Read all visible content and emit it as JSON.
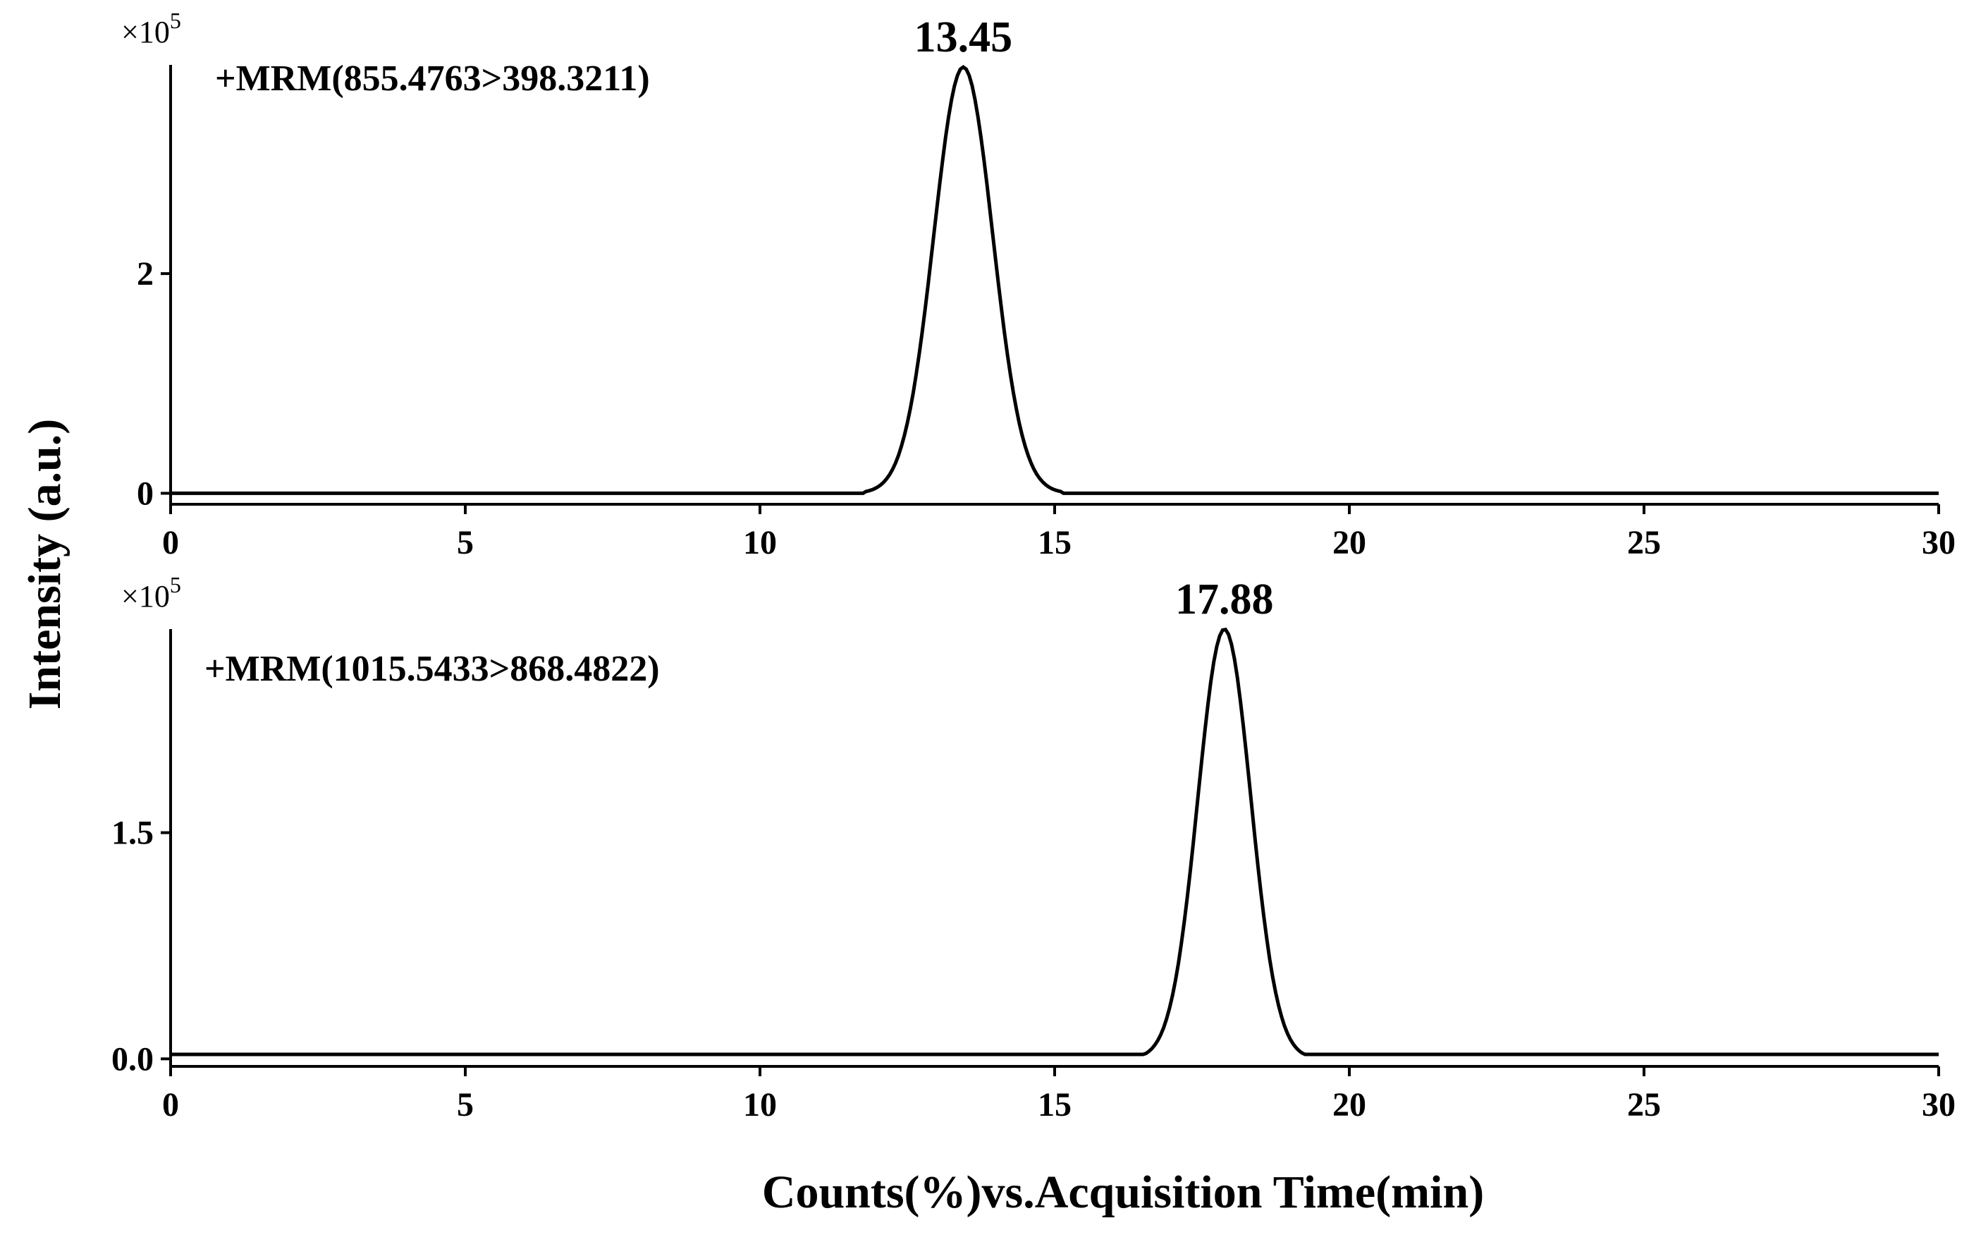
{
  "y_axis_title": "Intensity (a.u.)",
  "x_axis_title": "Counts(%)vs.Acquisition Time(min)",
  "chart_data": [
    {
      "type": "line",
      "trace_label": "+MRM(855.4763>398.3211)",
      "peak_label": "13.45",
      "scale_label": "×10",
      "scale_exponent": "5",
      "xlim": [
        0,
        30
      ],
      "ylim": [
        -0.1,
        3.9
      ],
      "xticks": [
        0,
        5,
        10,
        15,
        20,
        25,
        30
      ],
      "yticks": [
        0,
        2
      ],
      "ytick_labels": [
        "0",
        "2"
      ],
      "peak": {
        "x": 13.45,
        "y": 3.88,
        "sigma": 0.5,
        "start": 11.8,
        "end": 15.1
      },
      "baseline": 0
    },
    {
      "type": "line",
      "trace_label": "+MRM(1015.5433>868.4822)",
      "peak_label": "17.88",
      "scale_label": "×10",
      "scale_exponent": "5",
      "xlim": [
        0,
        30
      ],
      "ylim": [
        -0.05,
        2.85
      ],
      "xticks": [
        0,
        5,
        10,
        15,
        20,
        25,
        30
      ],
      "yticks": [
        0,
        1.5
      ],
      "ytick_labels": [
        "0.0",
        "1.5"
      ],
      "peak": {
        "x": 17.88,
        "y": 2.85,
        "sigma": 0.45,
        "start": 16.3,
        "end": 19.5
      },
      "baseline": 0
    }
  ]
}
